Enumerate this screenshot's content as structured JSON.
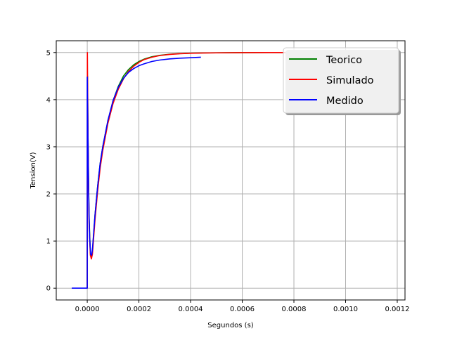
{
  "chart_data": {
    "type": "line",
    "title": "",
    "xlabel": "Segundos (s)",
    "ylabel": "Tension(V)",
    "xlim": [
      -0.00012,
      0.00123
    ],
    "ylim": [
      -0.25,
      5.25
    ],
    "grid": true,
    "legend_position": "top-right",
    "xticks": [
      0.0,
      0.0002,
      0.0004,
      0.0006,
      0.0008,
      0.001,
      0.0012
    ],
    "xtick_labels": [
      "0.0000",
      "0.0002",
      "0.0004",
      "0.0006",
      "0.0008",
      "0.0010",
      "0.0012"
    ],
    "yticks": [
      0,
      1,
      2,
      3,
      4,
      5
    ],
    "ytick_labels": [
      "0",
      "1",
      "2",
      "3",
      "4",
      "5"
    ],
    "series": [
      {
        "name": "Teorico",
        "color": "#008000",
        "x": [
          0.0,
          1e-06,
          3e-06,
          7e-06,
          1.2e-05,
          1.6e-05,
          2e-05,
          3e-05,
          4e-05,
          5e-05,
          6e-05,
          8e-05,
          0.0001,
          0.00012,
          0.00014,
          0.00016,
          0.00018,
          0.0002,
          0.00022,
          0.00025,
          0.00028,
          0.00032,
          0.00036,
          0.0004,
          0.00045,
          0.0005,
          0.0006,
          0.0007,
          0.0008
        ],
        "y": [
          0.0,
          4.5,
          3.2,
          1.5,
          0.75,
          0.65,
          0.78,
          1.55,
          2.15,
          2.65,
          3.0,
          3.55,
          3.98,
          4.28,
          4.5,
          4.64,
          4.74,
          4.81,
          4.86,
          4.91,
          4.94,
          4.965,
          4.978,
          4.986,
          4.991,
          4.994,
          4.997,
          4.999,
          5.0
        ]
      },
      {
        "name": "Simulado",
        "color": "#ff0000",
        "x": [
          0.0,
          5e-07,
          1e-06,
          3e-06,
          7e-06,
          1.2e-05,
          1.6e-05,
          2e-05,
          3e-05,
          4e-05,
          5e-05,
          6e-05,
          8e-05,
          0.0001,
          0.00012,
          0.00014,
          0.00016,
          0.00018,
          0.0002,
          0.00022,
          0.00025,
          0.00028,
          0.00032,
          0.00036,
          0.0004,
          0.00045,
          0.0005,
          0.0006,
          0.0007,
          0.0008
        ],
        "y": [
          0.0,
          5.0,
          4.6,
          3.2,
          1.4,
          0.7,
          0.62,
          0.72,
          1.45,
          2.05,
          2.55,
          2.92,
          3.5,
          3.92,
          4.22,
          4.44,
          4.6,
          4.71,
          4.79,
          4.85,
          4.9,
          4.935,
          4.96,
          4.975,
          4.984,
          4.99,
          4.993,
          4.997,
          4.999,
          5.0
        ]
      },
      {
        "name": "Medido",
        "color": "#0000ff",
        "x": [
          -6e-05,
          -4e-05,
          -2e-05,
          0.0,
          0.0,
          2e-06,
          5e-06,
          9e-06,
          1.3e-05,
          1.7e-05,
          2e-05,
          3e-05,
          4e-05,
          5e-05,
          6e-05,
          8e-05,
          0.0001,
          0.00012,
          0.00014,
          0.00016,
          0.00018,
          0.0002,
          0.00022,
          0.00025,
          0.00028,
          0.00032,
          0.00036,
          0.0004,
          0.00044
        ],
        "y": [
          0.0,
          0.0,
          0.0,
          0.0,
          4.48,
          3.6,
          2.1,
          1.1,
          0.72,
          0.7,
          0.82,
          1.55,
          2.15,
          2.65,
          3.0,
          3.56,
          3.98,
          4.26,
          4.45,
          4.58,
          4.66,
          4.72,
          4.76,
          4.81,
          4.84,
          4.865,
          4.88,
          4.89,
          4.9
        ]
      }
    ]
  }
}
